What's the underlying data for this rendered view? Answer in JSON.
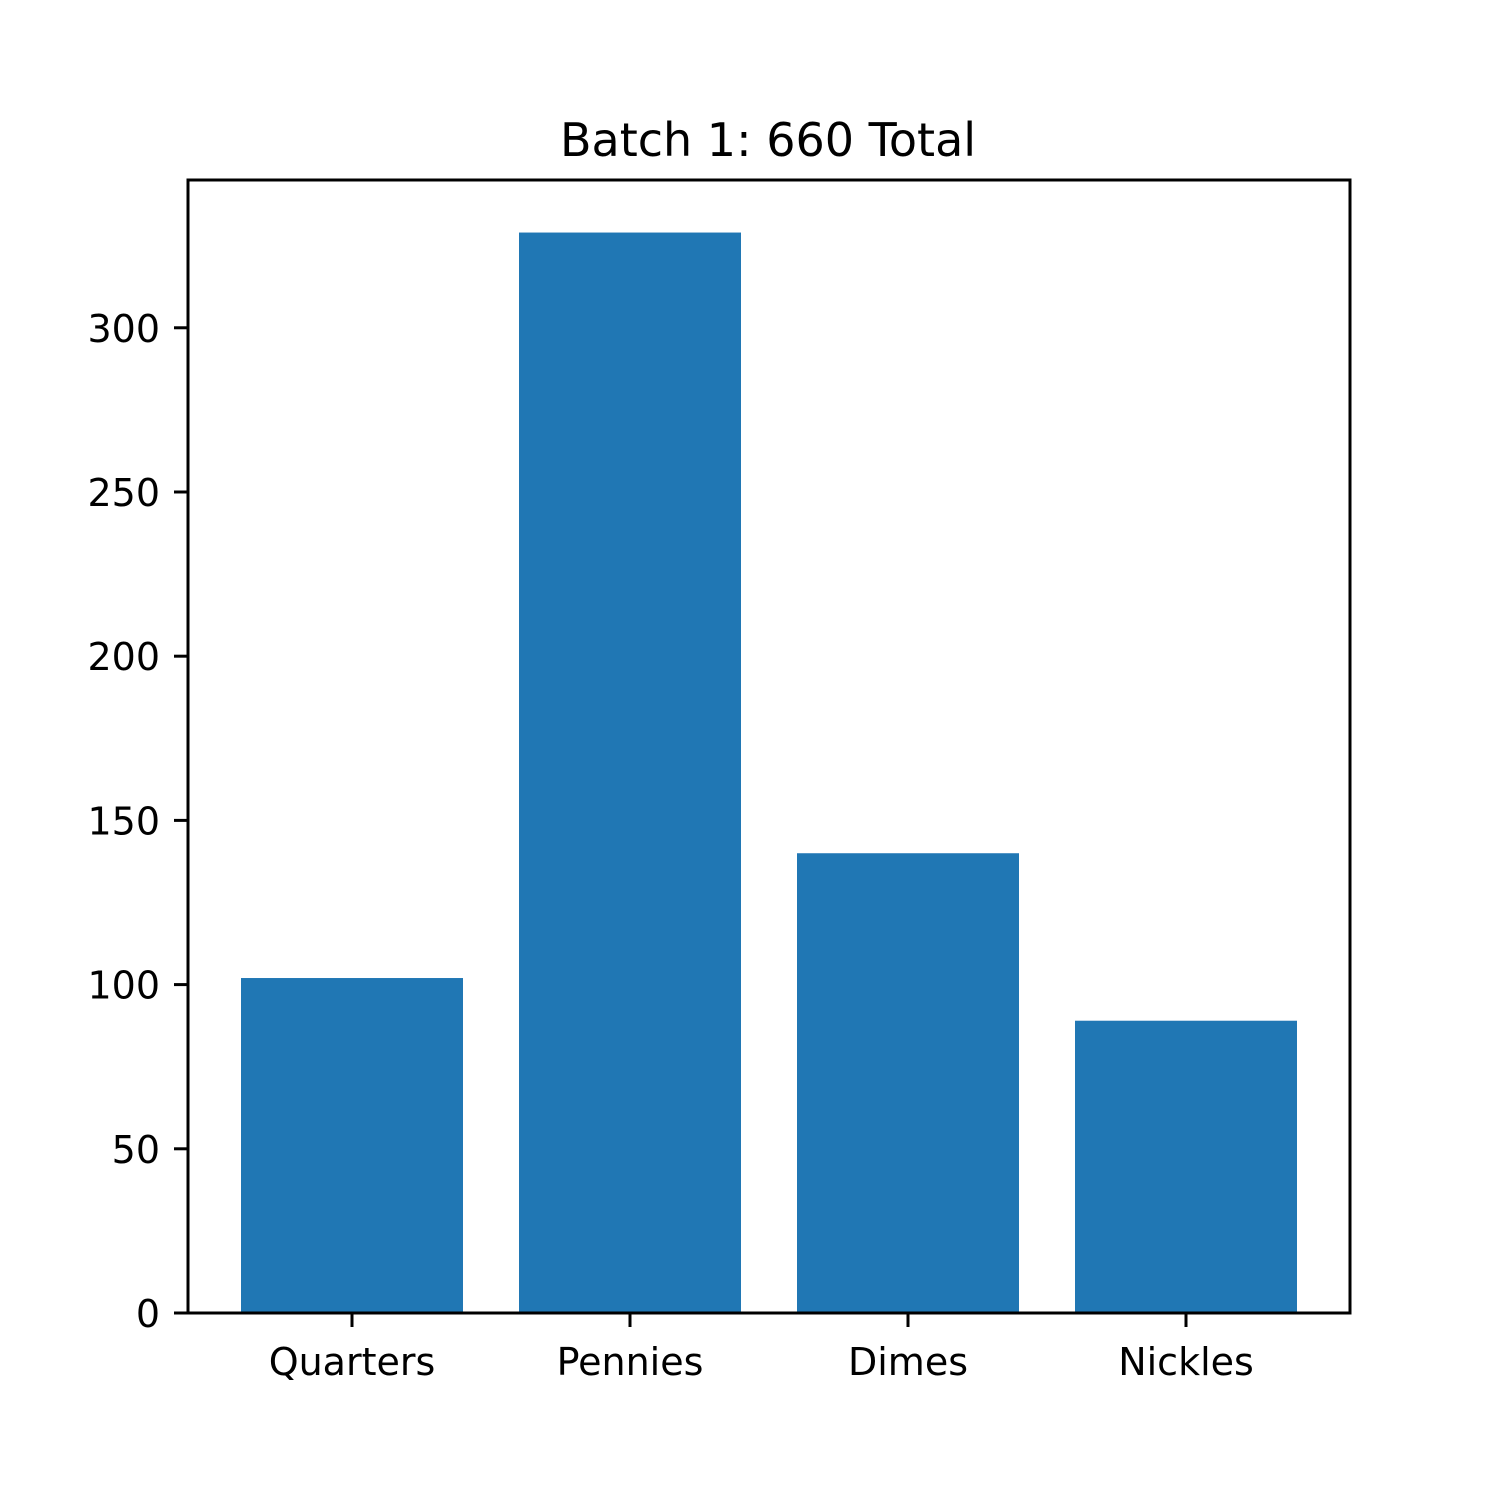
{
  "chart_data": {
    "type": "bar",
    "title": "Batch 1: 660 Total",
    "xlabel": "",
    "ylabel": "",
    "categories": [
      "Quarters",
      "Pennies",
      "Dimes",
      "Nickles"
    ],
    "values": [
      102,
      329,
      140,
      89
    ],
    "ylim": [
      0,
      345
    ],
    "yticks": [
      0,
      50,
      100,
      150,
      200,
      250,
      300
    ],
    "grid": false,
    "bar_color": "#2077b4"
  }
}
